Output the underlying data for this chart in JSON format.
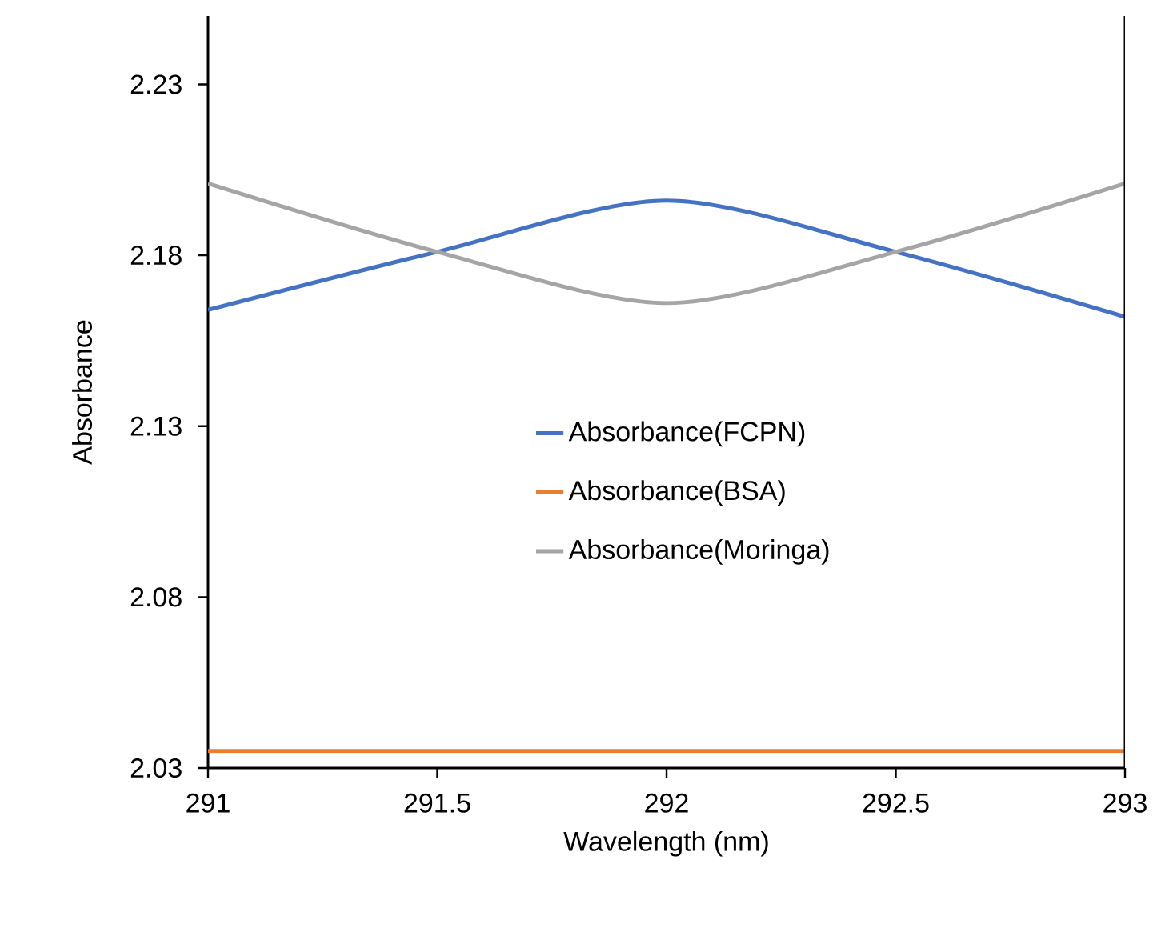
{
  "chart_data": {
    "type": "line",
    "xlabel": "Wavelength (nm)",
    "ylabel": "Absorbance",
    "x": [
      291,
      291.5,
      292,
      292.5,
      293
    ],
    "series": [
      {
        "name": "Absorbance(FCPN)",
        "color": "#4472c4",
        "values": [
          2.164,
          2.181,
          2.196,
          2.181,
          2.162
        ]
      },
      {
        "name": "Absorbance(BSA)",
        "color": "#ed7d31",
        "values": [
          2.035,
          2.035,
          2.035,
          2.035,
          2.035
        ]
      },
      {
        "name": "Absorbance(Moringa)",
        "color": "#a5a5a5",
        "values": [
          2.201,
          2.181,
          2.166,
          2.181,
          2.201
        ]
      }
    ],
    "xlim": [
      291,
      293
    ],
    "ylim": [
      2.03,
      2.25
    ],
    "xticks": [
      291,
      291.5,
      292,
      292.5,
      293
    ],
    "yticks": [
      2.03,
      2.08,
      2.13,
      2.18,
      2.23
    ],
    "grid": false,
    "legend": "right",
    "marker": "none",
    "line_style": "solid"
  }
}
